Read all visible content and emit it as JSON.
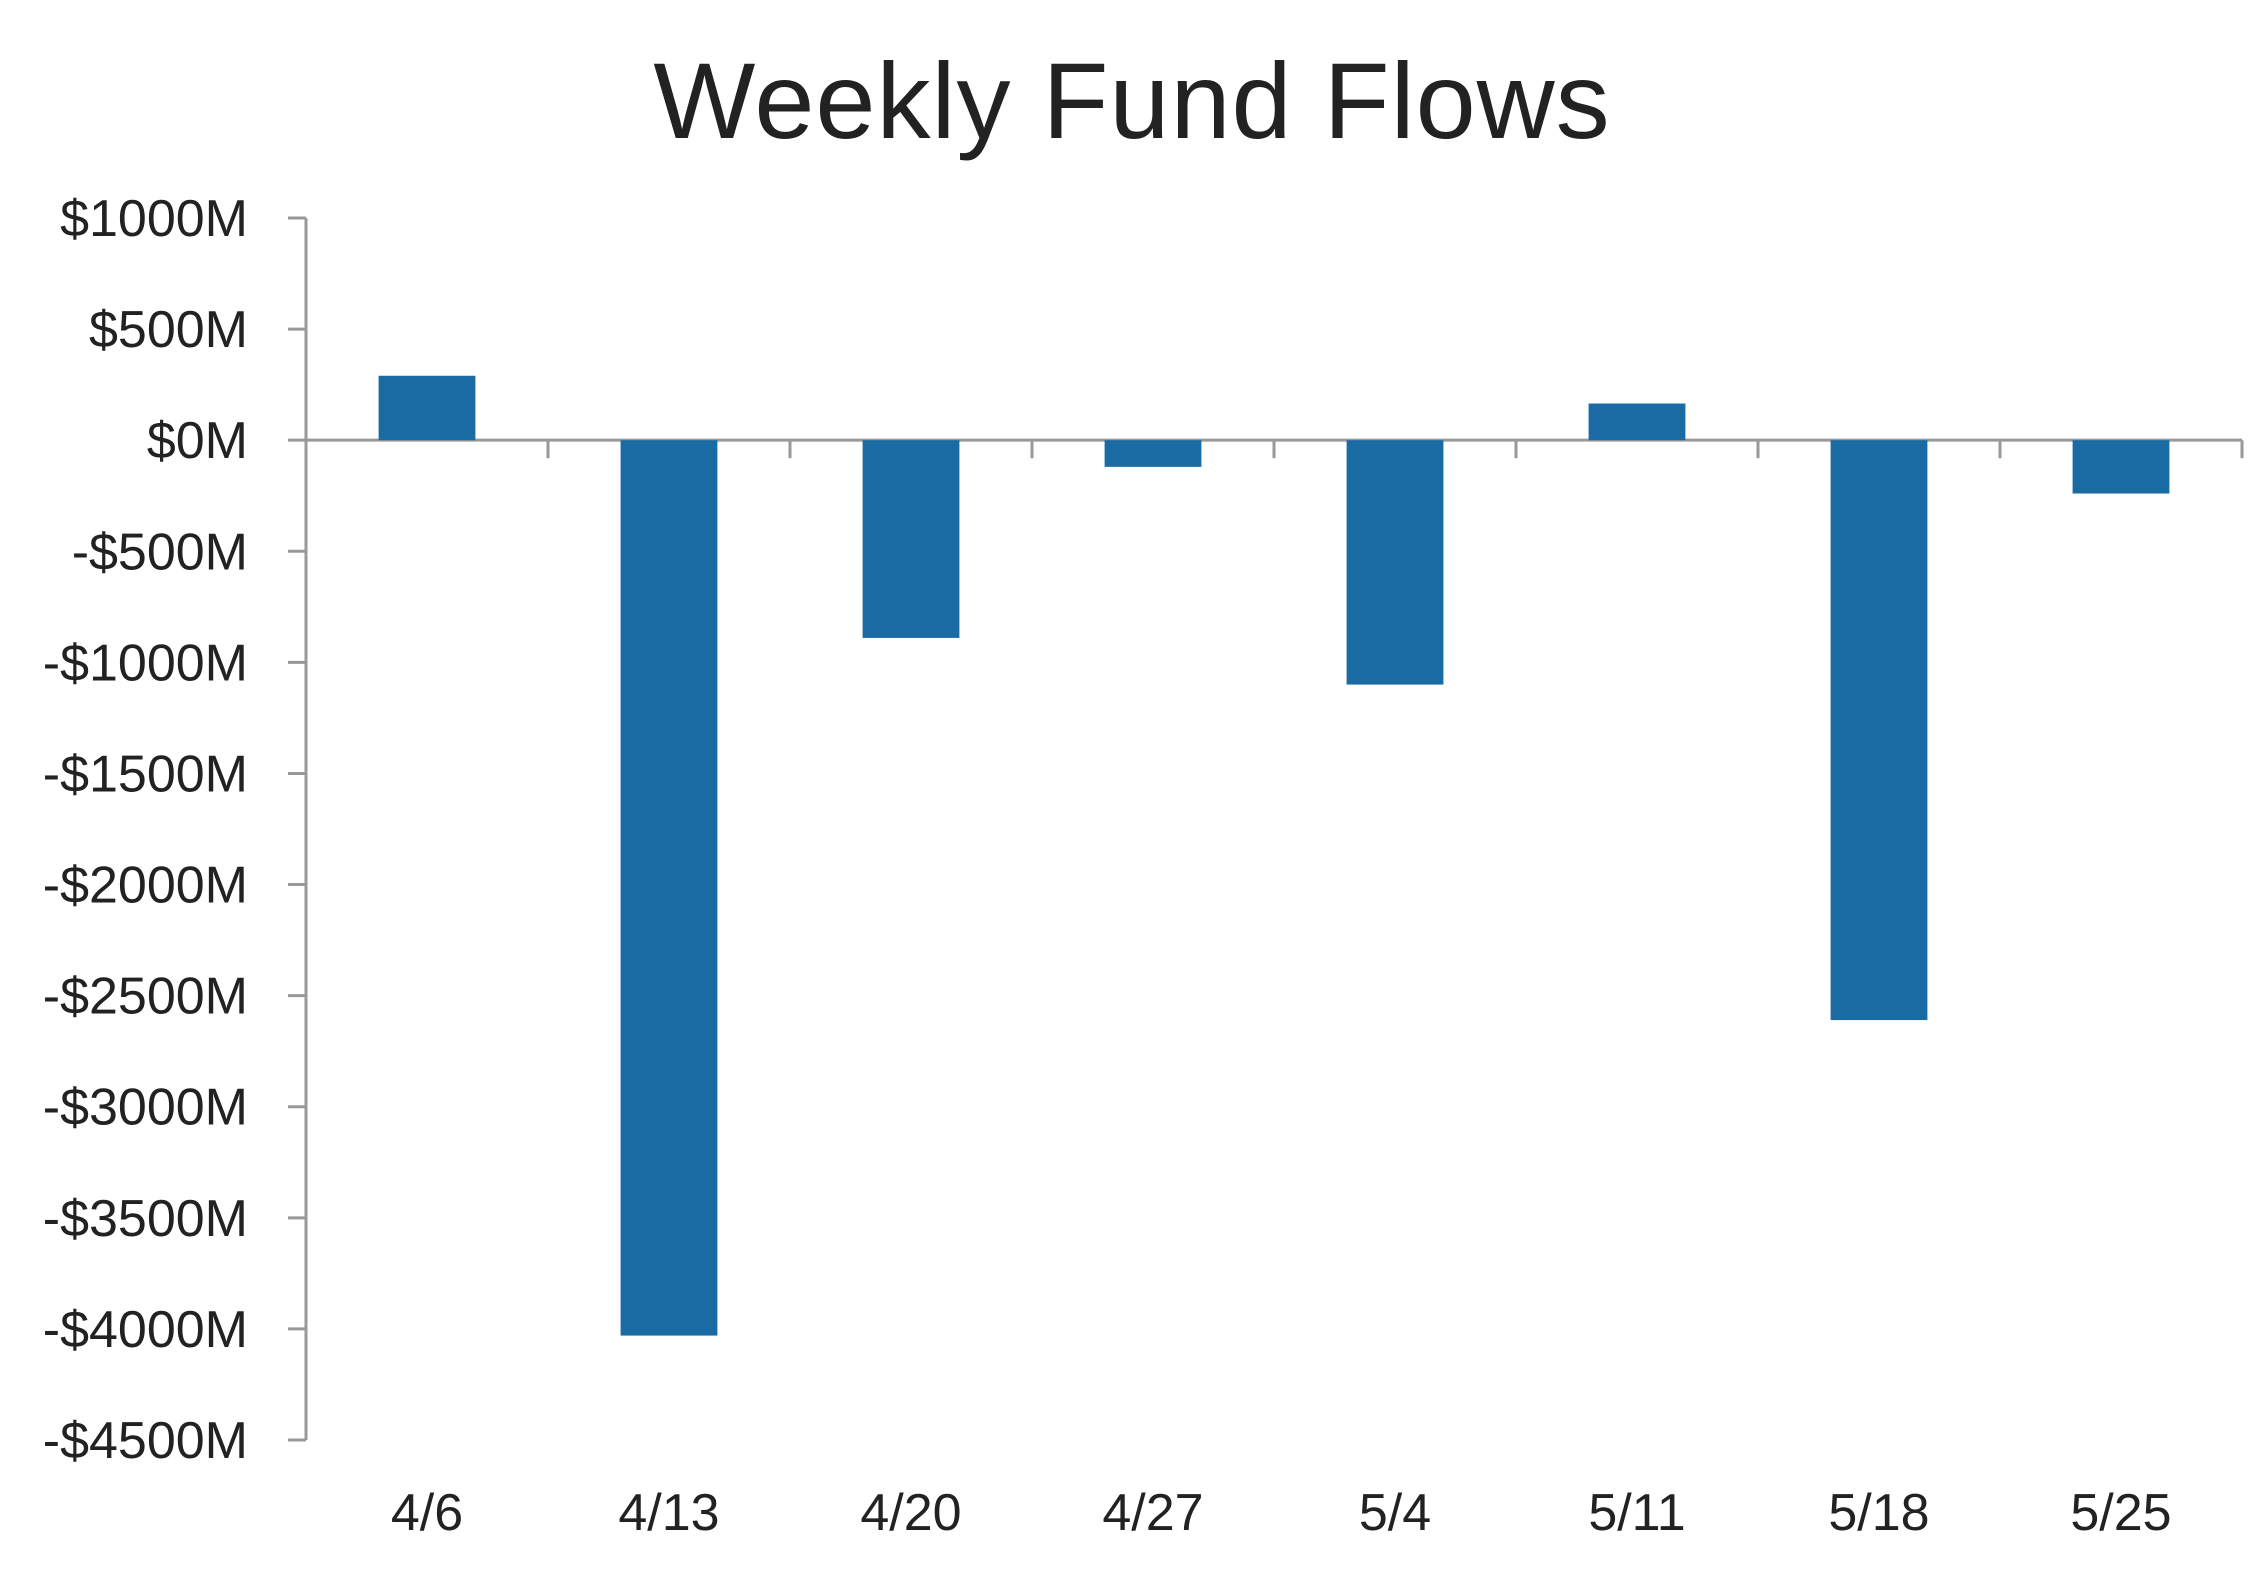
{
  "chart_data": {
    "type": "bar",
    "title": "Weekly Fund Flows",
    "xlabel": "",
    "ylabel": "",
    "categories": [
      "4/6",
      "4/13",
      "4/20",
      "4/27",
      "5/4",
      "5/11",
      "5/18",
      "5/25"
    ],
    "values": [
      290,
      -4030,
      -890,
      -120,
      -1100,
      165,
      -2610,
      -240
    ],
    "ylim": [
      -4500,
      1000
    ],
    "yticks": [
      1000,
      500,
      0,
      -500,
      -1000,
      -1500,
      -2000,
      -2500,
      -3000,
      -3500,
      -4000,
      -4500
    ],
    "ytick_labels": [
      "$1000M",
      "$500M",
      "$0M",
      "-$500M",
      "-$1000M",
      "-$1500M",
      "-$2000M",
      "-$2500M",
      "-$3000M",
      "-$3500M",
      "-$4000M",
      "-$4500M"
    ],
    "grid": false,
    "legend": "none",
    "bar_color": "#1A6AA3",
    "axis_color": "#999999"
  }
}
